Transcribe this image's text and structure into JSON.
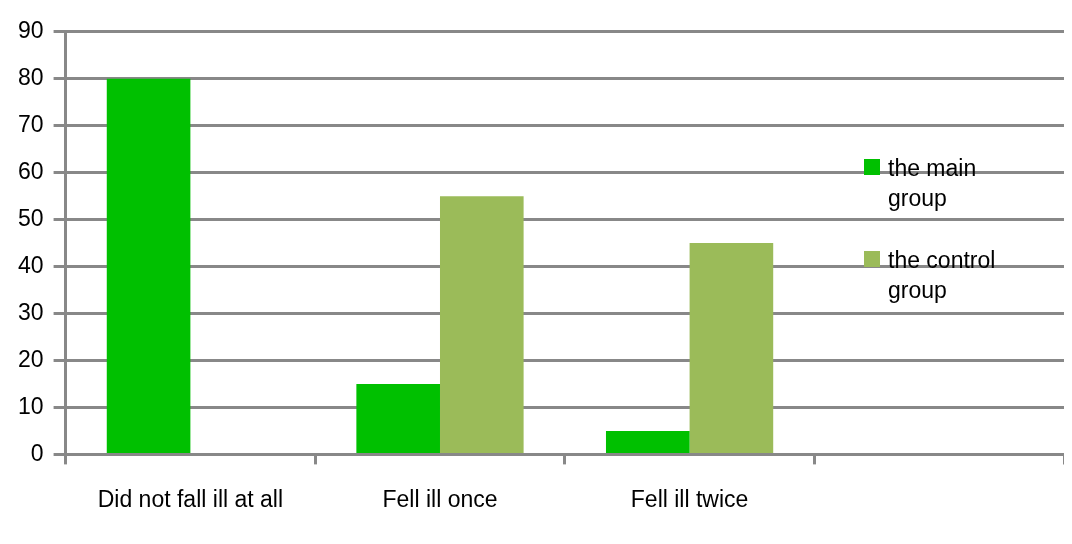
{
  "chart_data": {
    "type": "bar",
    "categories": [
      "Did not fall ill at all",
      "Fell ill once",
      "Fell ill twice",
      null
    ],
    "series": [
      {
        "name": "the main group",
        "color": "#00c000",
        "values": [
          80,
          15,
          5,
          null
        ]
      },
      {
        "name": "the control group",
        "color": "#9bbb59",
        "values": [
          null,
          55,
          45,
          null
        ]
      }
    ],
    "ylim": [
      0,
      90
    ],
    "yticks": [
      0,
      10,
      20,
      30,
      40,
      50,
      60,
      70,
      80,
      90
    ],
    "grid": "y",
    "legend": "right"
  }
}
